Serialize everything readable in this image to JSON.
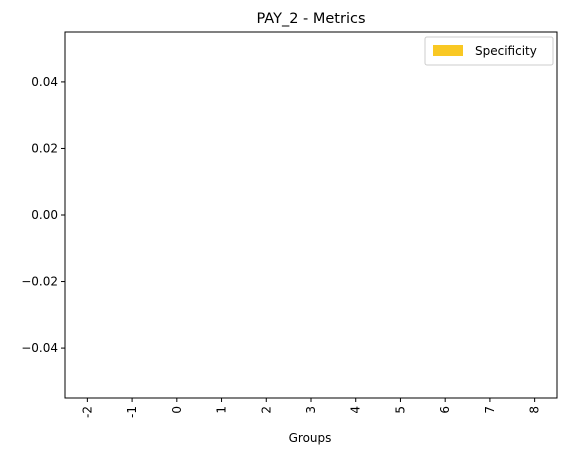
{
  "chart_data": {
    "type": "bar",
    "title": "PAY_2 - Metrics",
    "xlabel": "Groups",
    "ylabel": "",
    "categories": [
      "-2",
      "-1",
      "0",
      "1",
      "2",
      "3",
      "4",
      "5",
      "6",
      "7",
      "8"
    ],
    "series": [
      {
        "name": "Specificity",
        "values": [
          0,
          0,
          0,
          0,
          0,
          0,
          0,
          0,
          0,
          0,
          0
        ],
        "color": "#f9c823"
      }
    ],
    "ylim": [
      -0.055,
      0.055
    ],
    "yticks": [
      -0.04,
      -0.02,
      0.0,
      0.02,
      0.04
    ],
    "ytick_labels": [
      "−0.04",
      "−0.02",
      "0.00",
      "0.02",
      "0.04"
    ],
    "grid": false,
    "legend_position": "top-right"
  }
}
